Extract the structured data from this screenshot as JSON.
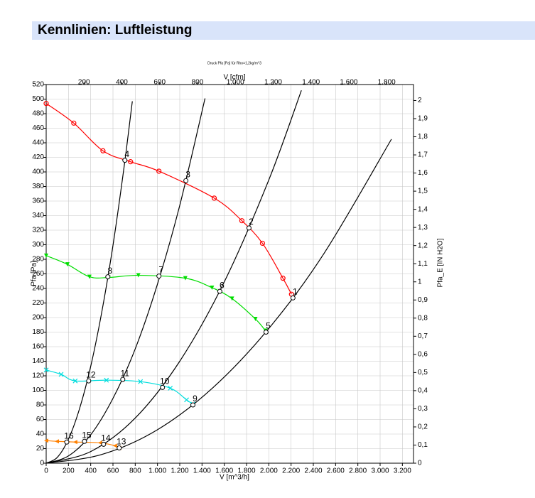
{
  "header": {
    "title": "Kennlinien: Luftleistung"
  },
  "chart_data": {
    "type": "line",
    "title": "Druck Pfa [Pa] für Rho=1,2kg/m^3",
    "xlabel": "V [m^3/h]",
    "x2label": "V [cfm]",
    "ylabel": "Pfa [Pa]",
    "y2label": "Pfa_E [IN H2O]",
    "xlim": [
      0,
      3300
    ],
    "x2lim": [
      0,
      1942
    ],
    "ylim": [
      0,
      520
    ],
    "y2lim": [
      0,
      2.088
    ],
    "grid": true,
    "xticks": [
      0,
      200,
      400,
      600,
      800,
      {
        "value": 1000,
        "label": "1.000"
      },
      {
        "value": 1200,
        "label": "1.200"
      },
      {
        "value": 1400,
        "label": "1.400"
      },
      {
        "value": 1600,
        "label": "1.600"
      },
      {
        "value": 1800,
        "label": "1.800"
      },
      {
        "value": 2000,
        "label": "2.000"
      },
      {
        "value": 2200,
        "label": "2.200"
      },
      {
        "value": 2400,
        "label": "2.400"
      },
      {
        "value": 2600,
        "label": "2.600"
      },
      {
        "value": 2800,
        "label": "2.800"
      },
      {
        "value": 3000,
        "label": "3.000"
      },
      {
        "value": 3200,
        "label": "3.200"
      }
    ],
    "x2ticks": [
      200,
      400,
      600,
      800,
      {
        "value": 1000,
        "label": "1.000"
      },
      {
        "value": 1200,
        "label": "1.200"
      },
      {
        "value": 1400,
        "label": "1.400"
      },
      {
        "value": 1600,
        "label": "1.600"
      },
      {
        "value": 1800,
        "label": "1.800"
      }
    ],
    "yticks": [
      0,
      20,
      40,
      60,
      80,
      100,
      120,
      140,
      160,
      180,
      200,
      220,
      240,
      260,
      280,
      300,
      320,
      340,
      360,
      380,
      400,
      420,
      440,
      460,
      480,
      500,
      520
    ],
    "y2ticks": [
      0,
      {
        "value": 0.1,
        "label": "0,1"
      },
      {
        "value": 0.2,
        "label": "0,2"
      },
      {
        "value": 0.3,
        "label": "0,3"
      },
      {
        "value": 0.4,
        "label": "0,4"
      },
      {
        "value": 0.5,
        "label": "0,5"
      },
      {
        "value": 0.6,
        "label": "0,6"
      },
      {
        "value": 0.7,
        "label": "0,7"
      },
      {
        "value": 0.8,
        "label": "0,8"
      },
      {
        "value": 0.9,
        "label": "0,9"
      },
      1,
      {
        "value": 1.1,
        "label": "1,1"
      },
      {
        "value": 1.2,
        "label": "1,2"
      },
      {
        "value": 1.3,
        "label": "1,3"
      },
      {
        "value": 1.4,
        "label": "1,4"
      },
      {
        "value": 1.5,
        "label": "1,5"
      },
      {
        "value": 1.6,
        "label": "1,6"
      },
      {
        "value": 1.7,
        "label": "1,7"
      },
      {
        "value": 1.8,
        "label": "1,8"
      },
      {
        "value": 1.9,
        "label": "1,9"
      },
      2
    ],
    "series": [
      {
        "color": "#ff0000",
        "marker": "circle",
        "x": [
          0,
          248,
          510,
          758,
          1013,
          1510,
          1758,
          1943,
          2127,
          2204
        ],
        "values": [
          494,
          467,
          429,
          414,
          401,
          364,
          333,
          302,
          254,
          232
        ]
      },
      {
        "color": "#00dd00",
        "marker": "triangle-down",
        "x": [
          0,
          191,
          389,
          560,
          828,
          1250,
          1490,
          1670,
          1880,
          1970
        ],
        "values": [
          285,
          273,
          256,
          255,
          258,
          254,
          241,
          226,
          198,
          182
        ]
      },
      {
        "color": "#00dddd",
        "marker": "cross",
        "x": [
          0,
          134,
          261,
          541,
          847,
          1115,
          1261,
          1318
        ],
        "values": [
          128,
          122,
          113,
          114,
          112,
          103,
          87,
          81
        ]
      },
      {
        "color": "#ff8000",
        "marker": "triangle-left",
        "x": [
          0,
          96,
          261,
          484,
          618,
          656
        ],
        "values": [
          31,
          30,
          29,
          28,
          24,
          21
        ]
      },
      {
        "color": "#000000",
        "x": [
          0,
          100,
          200,
          300,
          400,
          500,
          600,
          700,
          774
        ],
        "values": [
          0,
          8,
          33,
          75,
          133,
          208,
          299,
          407,
          497
        ]
      },
      {
        "color": "#000000",
        "x": [
          0,
          200,
          400,
          600,
          800,
          1000,
          1200,
          1427
        ],
        "values": [
          0,
          10,
          39,
          89,
          157,
          246,
          354,
          501
        ]
      },
      {
        "color": "#000000",
        "x": [
          0,
          400,
          800,
          1200,
          1600,
          2000,
          2293
        ],
        "values": [
          0,
          16,
          62,
          140,
          249,
          389,
          512
        ]
      },
      {
        "color": "#000000",
        "x": [
          0,
          500,
          1000,
          1500,
          2000,
          2500,
          3102
        ],
        "values": [
          0,
          12,
          46,
          104,
          185,
          289,
          445
        ]
      }
    ],
    "points": [
      {
        "label": "1",
        "x": 2217,
        "y": 227
      },
      {
        "label": "2",
        "x": 1822,
        "y": 323
      },
      {
        "label": "3",
        "x": 1255,
        "y": 388
      },
      {
        "label": "4",
        "x": 707,
        "y": 416
      },
      {
        "label": "5",
        "x": 1975,
        "y": 180
      },
      {
        "label": "6",
        "x": 1560,
        "y": 236
      },
      {
        "label": "7",
        "x": 1013,
        "y": 257
      },
      {
        "label": "8",
        "x": 554,
        "y": 256
      },
      {
        "label": "9",
        "x": 1318,
        "y": 80
      },
      {
        "label": "10",
        "x": 1045,
        "y": 104
      },
      {
        "label": "11",
        "x": 688,
        "y": 115
      },
      {
        "label": "12",
        "x": 382,
        "y": 113
      },
      {
        "label": "13",
        "x": 656,
        "y": 21
      },
      {
        "label": "14",
        "x": 516,
        "y": 26
      },
      {
        "label": "15",
        "x": 344,
        "y": 30
      },
      {
        "label": "16",
        "x": 185,
        "y": 29
      }
    ]
  }
}
